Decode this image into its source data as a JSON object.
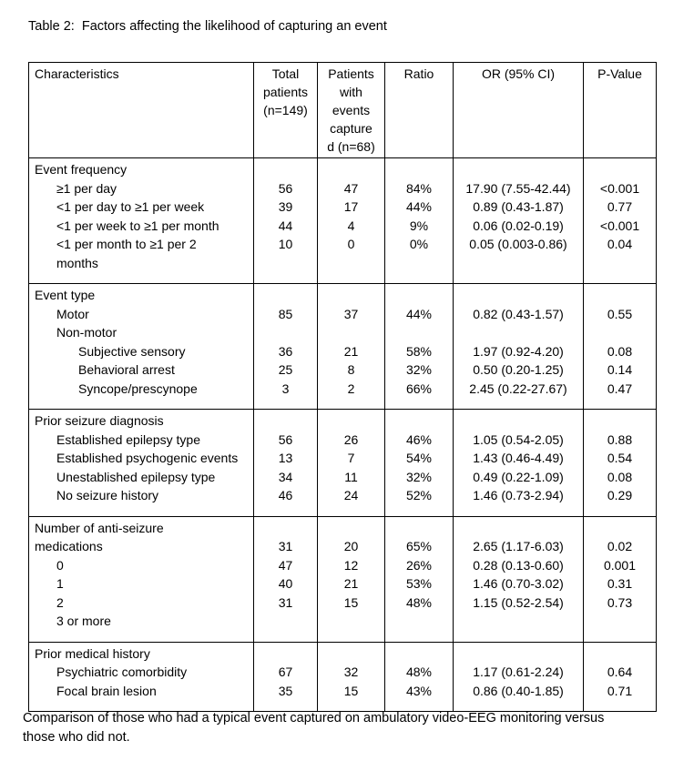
{
  "title": "Table 2:  Factors affecting the likelihood of capturing an event",
  "footnote": "Comparison of those who had a typical event captured on ambulatory video-EEG monitoring versus\nthose who did not.",
  "table": {
    "columns": [
      {
        "key": "label",
        "label": "Characteristics"
      },
      {
        "key": "total",
        "label": "Total\npatients\n(n=149)"
      },
      {
        "key": "events",
        "label": "Patients\nwith\nevents\ncapture\nd (n=68)"
      },
      {
        "key": "ratio",
        "label": "Ratio"
      },
      {
        "key": "or",
        "label": "OR (95% CI)"
      },
      {
        "key": "p",
        "label": "P-Value"
      }
    ],
    "sections": [
      {
        "name": "Event frequency",
        "rows": [
          {
            "label": "Event frequency",
            "indent": 0
          },
          {
            "label": "≥1 per day",
            "indent": 1,
            "total": "56",
            "events": "47",
            "ratio": "84%",
            "or": "17.90 (7.55-42.44)",
            "p": "<0.001"
          },
          {
            "label": "<1 per day to ≥1 per week",
            "indent": 1,
            "total": "39",
            "events": "17",
            "ratio": "44%",
            "or": "0.89 (0.43-1.87)",
            "p": "0.77"
          },
          {
            "label": "<1 per week to ≥1 per month",
            "indent": 1,
            "total": "44",
            "events": "4",
            "ratio": "9%",
            "or": "0.06 (0.02-0.19)",
            "p": "<0.001"
          },
          {
            "label": "<1 per month to ≥1 per 2",
            "indent": 1,
            "total": "10",
            "events": "0",
            "ratio": "0%",
            "or": "0.05 (0.003-0.86)",
            "p": "0.04"
          },
          {
            "label": "months",
            "indent": 1
          }
        ]
      },
      {
        "name": "Event type",
        "rows": [
          {
            "label": "Event type",
            "indent": 0
          },
          {
            "label": "Motor",
            "indent": 1,
            "total": "85",
            "events": "37",
            "ratio": "44%",
            "or": "0.82 (0.43-1.57)",
            "p": "0.55"
          },
          {
            "label": "Non-motor",
            "indent": 1
          },
          {
            "label": "Subjective sensory",
            "indent": 2,
            "total": "36",
            "events": "21",
            "ratio": "58%",
            "or": "1.97 (0.92-4.20)",
            "p": "0.08"
          },
          {
            "label": "Behavioral arrest",
            "indent": 2,
            "total": "25",
            "events": "8",
            "ratio": "32%",
            "or": "0.50 (0.20-1.25)",
            "p": "0.14"
          },
          {
            "label": "Syncope/prescynope",
            "indent": 2,
            "total": "3",
            "events": "2",
            "ratio": "66%",
            "or": "2.45 (0.22-27.67)",
            "p": "0.47"
          }
        ]
      },
      {
        "name": "Prior seizure diagnosis",
        "rows": [
          {
            "label": "Prior seizure diagnosis",
            "indent": 0
          },
          {
            "label": "Established epilepsy type",
            "indent": 1,
            "total": "56",
            "events": "26",
            "ratio": "46%",
            "or": "1.05 (0.54-2.05)",
            "p": "0.88"
          },
          {
            "label": "Established psychogenic events",
            "indent": 1,
            "total": "13",
            "events": "7",
            "ratio": "54%",
            "or": "1.43 (0.46-4.49)",
            "p": "0.54"
          },
          {
            "label": "Unestablished epilepsy type",
            "indent": 1,
            "total": "34",
            "events": "11",
            "ratio": "32%",
            "or": "0.49 (0.22-1.09)",
            "p": "0.08"
          },
          {
            "label": "No seizure history",
            "indent": 1,
            "total": "46",
            "events": "24",
            "ratio": "52%",
            "or": "1.46 (0.73-2.94)",
            "p": "0.29"
          }
        ]
      },
      {
        "name": "Number of anti-seizure medications",
        "rows": [
          {
            "label": "Number of anti-seizure",
            "indent": 0
          },
          {
            "label": "medications",
            "indent": 0,
            "total": "31",
            "events": "20",
            "ratio": "65%",
            "or": "2.65 (1.17-6.03)",
            "p": "0.02"
          },
          {
            "label": "0",
            "indent": 1,
            "total": "47",
            "events": "12",
            "ratio": "26%",
            "or": "0.28 (0.13-0.60)",
            "p": "0.001"
          },
          {
            "label": "1",
            "indent": 1,
            "total": "40",
            "events": "21",
            "ratio": "53%",
            "or": "1.46 (0.70-3.02)",
            "p": "0.31"
          },
          {
            "label": "2",
            "indent": 1,
            "total": "31",
            "events": "15",
            "ratio": "48%",
            "or": "1.15 (0.52-2.54)",
            "p": "0.73"
          },
          {
            "label": "3 or more",
            "indent": 1
          }
        ]
      },
      {
        "name": "Prior medical history",
        "rows": [
          {
            "label": "Prior medical history",
            "indent": 0
          },
          {
            "label": "Psychiatric comorbidity",
            "indent": 1,
            "total": "67",
            "events": "32",
            "ratio": "48%",
            "or": "1.17 (0.61-2.24)",
            "p": "0.64"
          },
          {
            "label": "Focal brain lesion",
            "indent": 1,
            "total": "35",
            "events": "15",
            "ratio": "43%",
            "or": "0.86 (0.40-1.85)",
            "p": "0.71"
          }
        ]
      }
    ]
  }
}
